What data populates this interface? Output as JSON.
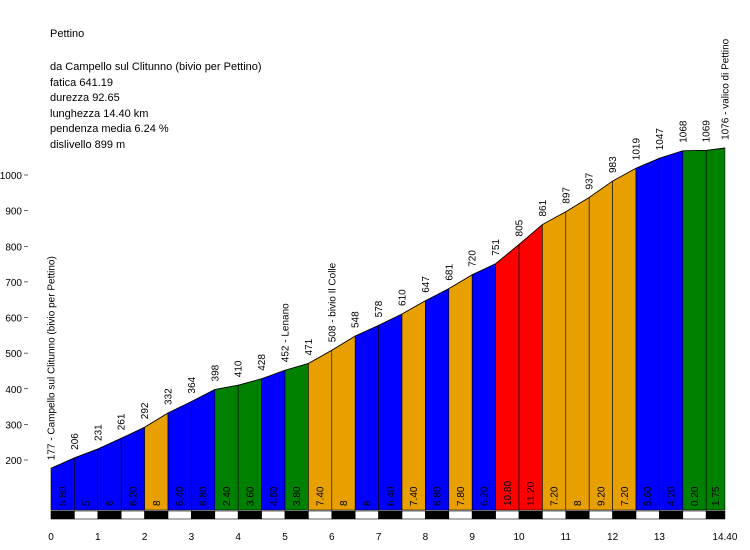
{
  "header": {
    "title": "Pettino",
    "lines": [
      "da Campello sul Clitunno (bivio per Pettino)",
      "fatica 641.19",
      "durezza 92.65",
      "lunghezza 14.40 km",
      "pendenza media 6.24 %",
      "dislivello 899 m"
    ]
  },
  "colors": {
    "blue": "#0000ff",
    "orange": "#e8a000",
    "green": "#008000",
    "red": "#ff0000"
  },
  "chart_data": {
    "type": "area",
    "title": "Pettino",
    "xlabel": "",
    "ylabel": "",
    "xlim": [
      0,
      14.4
    ],
    "ylim": [
      100,
      1100
    ],
    "y_ticks": [
      200,
      300,
      400,
      500,
      600,
      700,
      800,
      900,
      1000
    ],
    "x_ticks": [
      "0",
      "1",
      "2",
      "3",
      "4",
      "5",
      "6",
      "7",
      "8",
      "9",
      "10",
      "11",
      "12",
      "13",
      "14.40"
    ],
    "profile": [
      {
        "km": 0.0,
        "alt": 177
      },
      {
        "km": 0.5,
        "alt": 206
      },
      {
        "km": 1.0,
        "alt": 231
      },
      {
        "km": 1.5,
        "alt": 261
      },
      {
        "km": 2.0,
        "alt": 292
      },
      {
        "km": 2.5,
        "alt": 332
      },
      {
        "km": 3.0,
        "alt": 364
      },
      {
        "km": 3.5,
        "alt": 398
      },
      {
        "km": 4.0,
        "alt": 410
      },
      {
        "km": 4.5,
        "alt": 428
      },
      {
        "km": 5.0,
        "alt": 452
      },
      {
        "km": 5.5,
        "alt": 471
      },
      {
        "km": 6.0,
        "alt": 508
      },
      {
        "km": 6.5,
        "alt": 548
      },
      {
        "km": 7.0,
        "alt": 578
      },
      {
        "km": 7.5,
        "alt": 610
      },
      {
        "km": 8.0,
        "alt": 647
      },
      {
        "km": 8.5,
        "alt": 681
      },
      {
        "km": 9.0,
        "alt": 720
      },
      {
        "km": 9.5,
        "alt": 751
      },
      {
        "km": 10.0,
        "alt": 805
      },
      {
        "km": 10.5,
        "alt": 861
      },
      {
        "km": 11.0,
        "alt": 897
      },
      {
        "km": 11.5,
        "alt": 937
      },
      {
        "km": 12.0,
        "alt": 983
      },
      {
        "km": 12.5,
        "alt": 1019
      },
      {
        "km": 13.0,
        "alt": 1047
      },
      {
        "km": 13.5,
        "alt": 1068
      },
      {
        "km": 14.0,
        "alt": 1069
      },
      {
        "km": 14.4,
        "alt": 1076
      }
    ],
    "point_labels": [
      "177 - Campello sul Clitunno (bivio per Pettino)",
      "206",
      "231",
      "261",
      "292",
      "332",
      "364",
      "398",
      "410",
      "428",
      "452 - Lenano",
      "471",
      "508 - bivio Il Colle",
      "548",
      "578",
      "610",
      "647",
      "681",
      "720",
      "751",
      "805",
      "861",
      "897",
      "937",
      "983",
      "1019",
      "1047",
      "1068",
      "1069",
      "1076 - valico di Pettino"
    ],
    "segments": [
      {
        "from": 0.0,
        "to": 0.5,
        "gradient": "5.80",
        "color": "blue"
      },
      {
        "from": 0.5,
        "to": 1.0,
        "gradient": "5",
        "color": "blue"
      },
      {
        "from": 1.0,
        "to": 1.5,
        "gradient": "6",
        "color": "blue"
      },
      {
        "from": 1.5,
        "to": 2.0,
        "gradient": "6.20",
        "color": "blue"
      },
      {
        "from": 2.0,
        "to": 2.5,
        "gradient": "8",
        "color": "orange"
      },
      {
        "from": 2.5,
        "to": 3.0,
        "gradient": "6.40",
        "color": "blue"
      },
      {
        "from": 3.0,
        "to": 3.5,
        "gradient": "6.80",
        "color": "blue"
      },
      {
        "from": 3.5,
        "to": 4.0,
        "gradient": "2.40",
        "color": "green"
      },
      {
        "from": 4.0,
        "to": 4.5,
        "gradient": "3.60",
        "color": "green"
      },
      {
        "from": 4.5,
        "to": 5.0,
        "gradient": "4.80",
        "color": "blue"
      },
      {
        "from": 5.0,
        "to": 5.5,
        "gradient": "3.80",
        "color": "green"
      },
      {
        "from": 5.5,
        "to": 6.0,
        "gradient": "7.40",
        "color": "orange"
      },
      {
        "from": 6.0,
        "to": 6.5,
        "gradient": "8",
        "color": "orange"
      },
      {
        "from": 6.5,
        "to": 7.0,
        "gradient": "6",
        "color": "blue"
      },
      {
        "from": 7.0,
        "to": 7.5,
        "gradient": "6.40",
        "color": "blue"
      },
      {
        "from": 7.5,
        "to": 8.0,
        "gradient": "7.40",
        "color": "orange"
      },
      {
        "from": 8.0,
        "to": 8.5,
        "gradient": "6.80",
        "color": "blue"
      },
      {
        "from": 8.5,
        "to": 9.0,
        "gradient": "7.80",
        "color": "orange"
      },
      {
        "from": 9.0,
        "to": 9.5,
        "gradient": "6.20",
        "color": "blue"
      },
      {
        "from": 9.5,
        "to": 10.0,
        "gradient": "10.80",
        "color": "red"
      },
      {
        "from": 10.0,
        "to": 10.5,
        "gradient": "11.20",
        "color": "red"
      },
      {
        "from": 10.5,
        "to": 11.0,
        "gradient": "7.20",
        "color": "orange"
      },
      {
        "from": 11.0,
        "to": 11.5,
        "gradient": "8",
        "color": "orange"
      },
      {
        "from": 11.5,
        "to": 12.0,
        "gradient": "9.20",
        "color": "orange"
      },
      {
        "from": 12.0,
        "to": 12.5,
        "gradient": "7.20",
        "color": "orange"
      },
      {
        "from": 12.5,
        "to": 13.0,
        "gradient": "5.60",
        "color": "blue"
      },
      {
        "from": 13.0,
        "to": 13.5,
        "gradient": "4.20",
        "color": "blue"
      },
      {
        "from": 13.5,
        "to": 14.0,
        "gradient": "0.20",
        "color": "green"
      },
      {
        "from": 14.0,
        "to": 14.4,
        "gradient": "1.75",
        "color": "green"
      }
    ]
  }
}
